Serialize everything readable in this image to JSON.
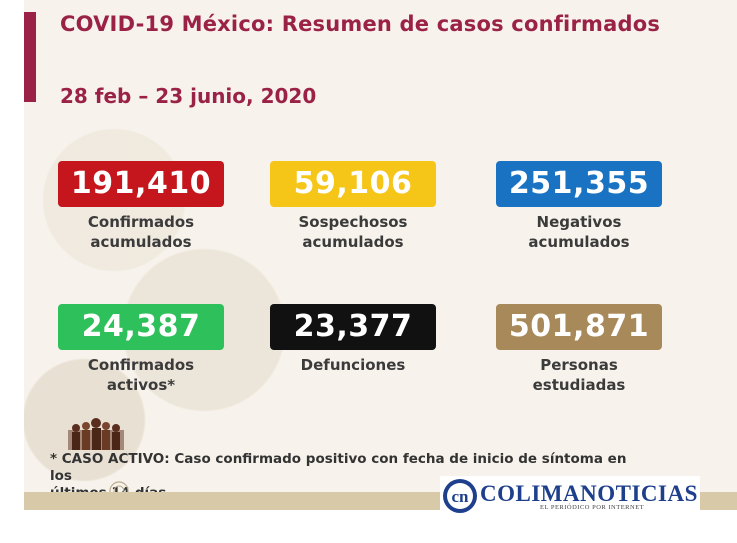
{
  "header": {
    "title": "COVID-19 México: Resumen de casos confirmados",
    "date_range": "28 feb – 23 junio, 2020"
  },
  "stats": [
    {
      "value": "191,410",
      "label_line1": "Confirmados",
      "label_line2": "acumulados",
      "color": "#c5161d"
    },
    {
      "value": "59,106",
      "label_line1": "Sospechosos",
      "label_line2": "acumulados",
      "color": "#f5c518"
    },
    {
      "value": "251,355",
      "label_line1": "Negativos",
      "label_line2": "acumulados",
      "color": "#1a73c2"
    },
    {
      "value": "24,387",
      "label_line1": "Confirmados",
      "label_line2": "activos*",
      "color": "#2ec05a"
    },
    {
      "value": "23,377",
      "label_line1": "Defunciones",
      "label_line2": "",
      "color": "#111111"
    },
    {
      "value": "501,871",
      "label_line1": "Personas",
      "label_line2": "estudiadas",
      "color": "#a8895a"
    }
  ],
  "footnote": {
    "line1": "* CASO ACTIVO: Caso confirmado positivo con fecha de inicio de síntoma en los",
    "line2": "últimos 14 días."
  },
  "brand": {
    "name": "COLIMANOTICIAS",
    "tagline": "EL PERIÓDICO POR INTERNET",
    "logo_letters": "cn"
  },
  "icons": {
    "crowd": "crowd-icon",
    "seal": "seal-icon",
    "brand_logo": "brand-logo-icon"
  }
}
